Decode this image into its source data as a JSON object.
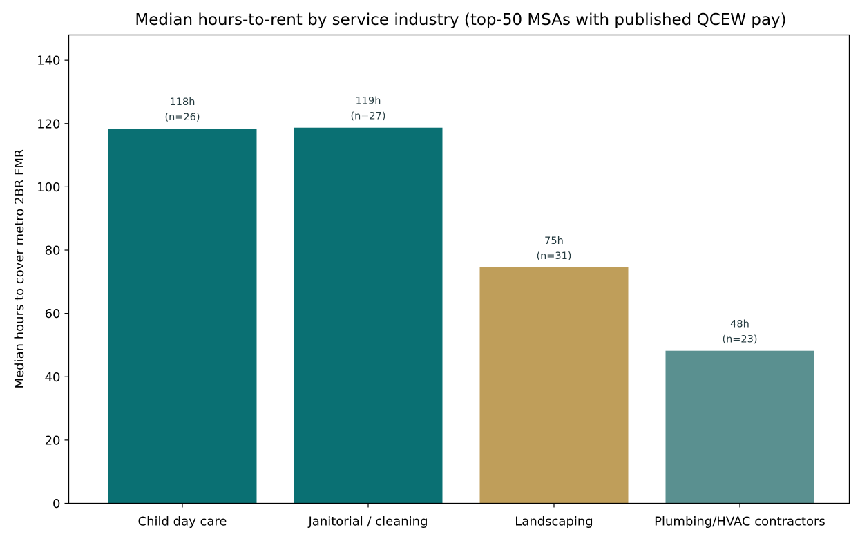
{
  "chart_data": {
    "type": "bar",
    "title": "Median hours-to-rent by service industry (top-50 MSAs with published QCEW pay)",
    "xlabel": "",
    "ylabel": "Median hours to cover metro 2BR FMR",
    "ylim": [
      0,
      148
    ],
    "yticks": [
      0,
      20,
      40,
      60,
      80,
      100,
      120,
      140
    ],
    "grid": false,
    "legend": "none",
    "categories": [
      "Child day care",
      "Janitorial / cleaning",
      "Landscaping",
      "Plumbing/HVAC contractors"
    ],
    "values": [
      118.4,
      118.7,
      74.6,
      48.2
    ],
    "data_labels": [
      [
        "118h",
        "(n=26)"
      ],
      [
        "119h",
        "(n=27)"
      ],
      [
        "75h",
        "(n=31)"
      ],
      [
        "48h",
        "(n=23)"
      ]
    ],
    "colors": [
      "#0a7073",
      "#0a7073",
      "#bf9e5a",
      "#5a9090"
    ]
  }
}
